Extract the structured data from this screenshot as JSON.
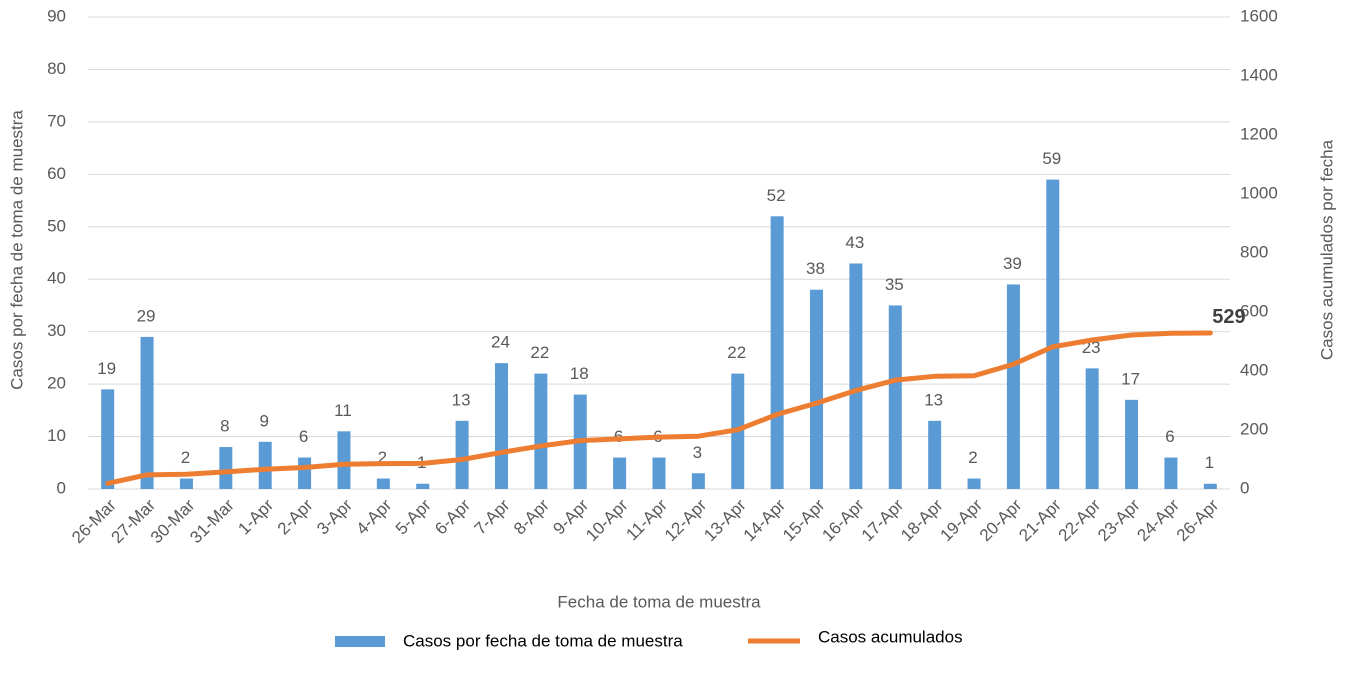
{
  "chart_data": {
    "type": "bar-line",
    "categories": [
      "26-Mar",
      "27-Mar",
      "30-Mar",
      "31-Mar",
      "1-Apr",
      "2-Apr",
      "3-Apr",
      "4-Apr",
      "5-Apr",
      "6-Apr",
      "7-Apr",
      "8-Apr",
      "9-Apr",
      "10-Apr",
      "11-Apr",
      "12-Apr",
      "13-Apr",
      "14-Apr",
      "15-Apr",
      "16-Apr",
      "17-Apr",
      "18-Apr",
      "19-Apr",
      "20-Apr",
      "21-Apr",
      "22-Apr",
      "23-Apr",
      "24-Apr",
      "26-Apr"
    ],
    "series": [
      {
        "name": "Casos por fecha de toma de muestra",
        "type": "bar",
        "color": "#5b9bd5",
        "axis": "y",
        "values": [
          19,
          29,
          2,
          8,
          9,
          6,
          11,
          2,
          1,
          13,
          24,
          22,
          18,
          6,
          6,
          3,
          22,
          52,
          38,
          43,
          35,
          13,
          2,
          39,
          59,
          23,
          17,
          6,
          1
        ]
      },
      {
        "name": "Casos acumulados",
        "type": "line",
        "color": "#ed7d31",
        "axis": "y2",
        "values": [
          19,
          48,
          50,
          58,
          67,
          73,
          84,
          86,
          87,
          100,
          124,
          146,
          164,
          170,
          176,
          179,
          201,
          253,
          291,
          334,
          369,
          382,
          384,
          423,
          482,
          505,
          522,
          528,
          529
        ]
      }
    ],
    "x_label": "Fecha de toma de muestra",
    "y_label": "Casos por fecha de toma de muestra",
    "y2_label": "Casos acumulados  por fecha",
    "ylim": [
      0,
      90
    ],
    "yticks": [
      0,
      10,
      20,
      30,
      40,
      50,
      60,
      70,
      80,
      90
    ],
    "y2lim": [
      0,
      1600
    ],
    "y2ticks": [
      0,
      200,
      400,
      600,
      800,
      1000,
      1200,
      1400,
      1600
    ],
    "grid": true,
    "legend": "bottom"
  }
}
